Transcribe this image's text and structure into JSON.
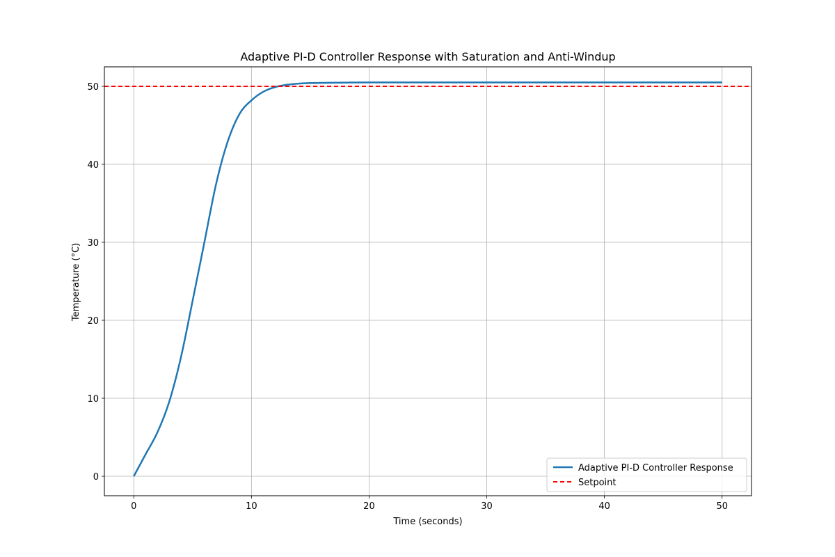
{
  "chart_data": {
    "type": "line",
    "title": "Adaptive PI-D Controller Response with Saturation and Anti-Windup",
    "xlabel": "Time (seconds)",
    "ylabel": "Temperature (°C)",
    "xlim": [
      -2.5,
      52.5
    ],
    "ylim": [
      -2.5,
      52.5
    ],
    "xticks": [
      0,
      10,
      20,
      30,
      40,
      50
    ],
    "yticks": [
      0,
      10,
      20,
      30,
      40,
      50
    ],
    "grid": true,
    "legend_position": "lower-right",
    "colors": {
      "response": "#1f77b4",
      "setpoint": "#ff0000"
    },
    "series": [
      {
        "name": "Adaptive PI-D Controller Response",
        "style": "solid",
        "x": [
          0,
          1,
          2,
          3,
          4,
          5,
          6,
          7,
          8,
          9,
          10,
          11,
          12,
          13,
          14,
          15,
          16,
          18,
          20,
          25,
          30,
          35,
          40,
          45,
          50
        ],
        "y": [
          0,
          2.8,
          5.6,
          9.5,
          15.2,
          22.5,
          30.0,
          37.5,
          43.0,
          46.5,
          48.2,
          49.3,
          49.9,
          50.2,
          50.35,
          50.42,
          50.45,
          50.48,
          50.5,
          50.5,
          50.5,
          50.5,
          50.5,
          50.5,
          50.5
        ]
      },
      {
        "name": "Setpoint",
        "style": "dashed",
        "y_constant": 50
      }
    ]
  }
}
